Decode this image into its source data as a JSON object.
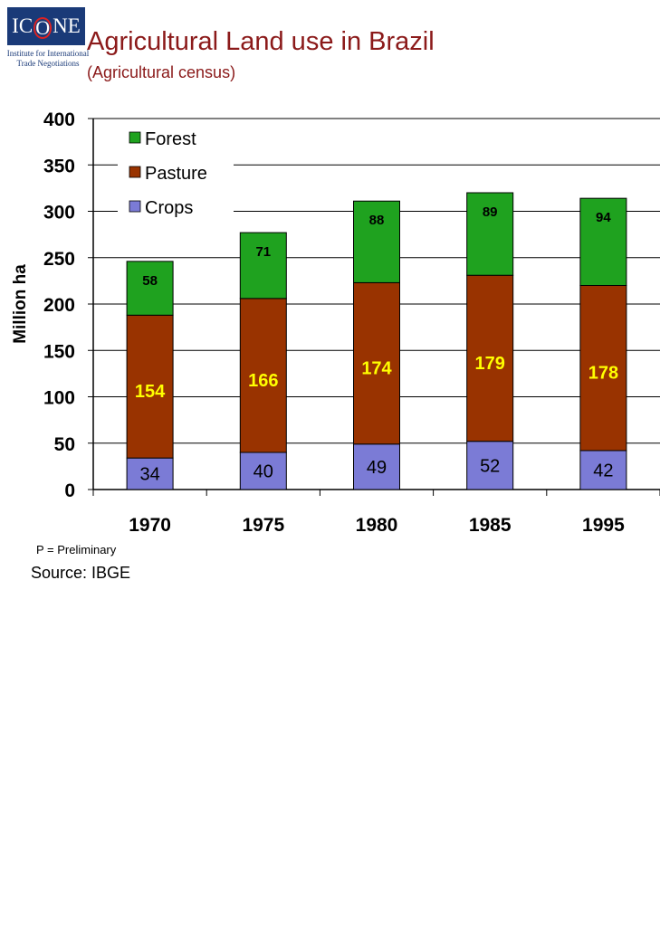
{
  "header": {
    "logo_text_left": "IC",
    "logo_text_o": "O",
    "logo_text_right": "NE",
    "logo_subtitle": "Institute for International Trade Negotiations",
    "title": "Agricultural Land use in Brazil",
    "subtitle": "(Agricultural census)"
  },
  "footer": {
    "note": "P = Preliminary",
    "source": "Source: IBGE"
  },
  "chart_data": {
    "type": "bar",
    "stacked": true,
    "categories": [
      "1970",
      "1975",
      "1980",
      "1985",
      "1995"
    ],
    "series": [
      {
        "name": "Crops",
        "values": [
          34,
          40,
          49,
          52,
          42
        ],
        "color": "#7b7bd6",
        "label_color": "#000000"
      },
      {
        "name": "Pasture",
        "values": [
          154,
          166,
          174,
          179,
          178
        ],
        "color": "#993300",
        "label_color": "#ffff00"
      },
      {
        "name": "Forest",
        "values": [
          58,
          71,
          88,
          89,
          94
        ],
        "color": "#1fa21f",
        "label_color": "#000000"
      }
    ],
    "ylabel": "Million ha",
    "yticks": [
      "0",
      "50",
      "100",
      "150",
      "200",
      "250",
      "300",
      "350",
      "400"
    ],
    "ylim": [
      0,
      400
    ],
    "grid": true,
    "legend_position": "top-left"
  }
}
